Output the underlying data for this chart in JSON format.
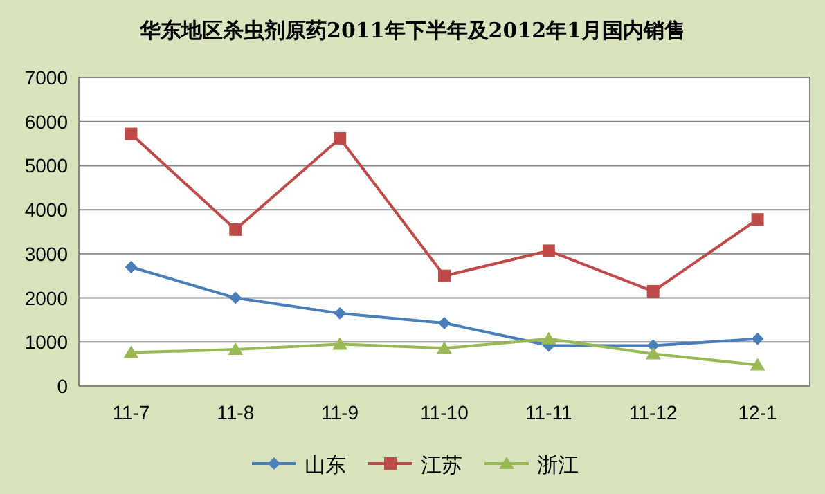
{
  "chart_data": {
    "type": "line",
    "title": "华东地区杀虫剂原药2011年下半年及2012年1月国内销售",
    "categories": [
      "11-7",
      "11-8",
      "11-9",
      "11-10",
      "11-11",
      "11-12",
      "12-1"
    ],
    "series": [
      {
        "name": "山东",
        "color": "#4a7ebb",
        "marker": "diamond",
        "values": [
          2700,
          2000,
          1650,
          1430,
          920,
          920,
          1070
        ]
      },
      {
        "name": "江苏",
        "color": "#be4b48",
        "marker": "square",
        "values": [
          5720,
          3550,
          5620,
          2500,
          3070,
          2150,
          3780
        ]
      },
      {
        "name": "浙江",
        "color": "#98b954",
        "marker": "triangle",
        "values": [
          760,
          830,
          950,
          860,
          1070,
          730,
          480
        ]
      }
    ],
    "ylim": [
      0,
      7000
    ],
    "yticks": [
      0,
      1000,
      2000,
      3000,
      4000,
      5000,
      6000,
      7000
    ],
    "grid": "y",
    "legend": "bottom",
    "line_style": "solid"
  }
}
